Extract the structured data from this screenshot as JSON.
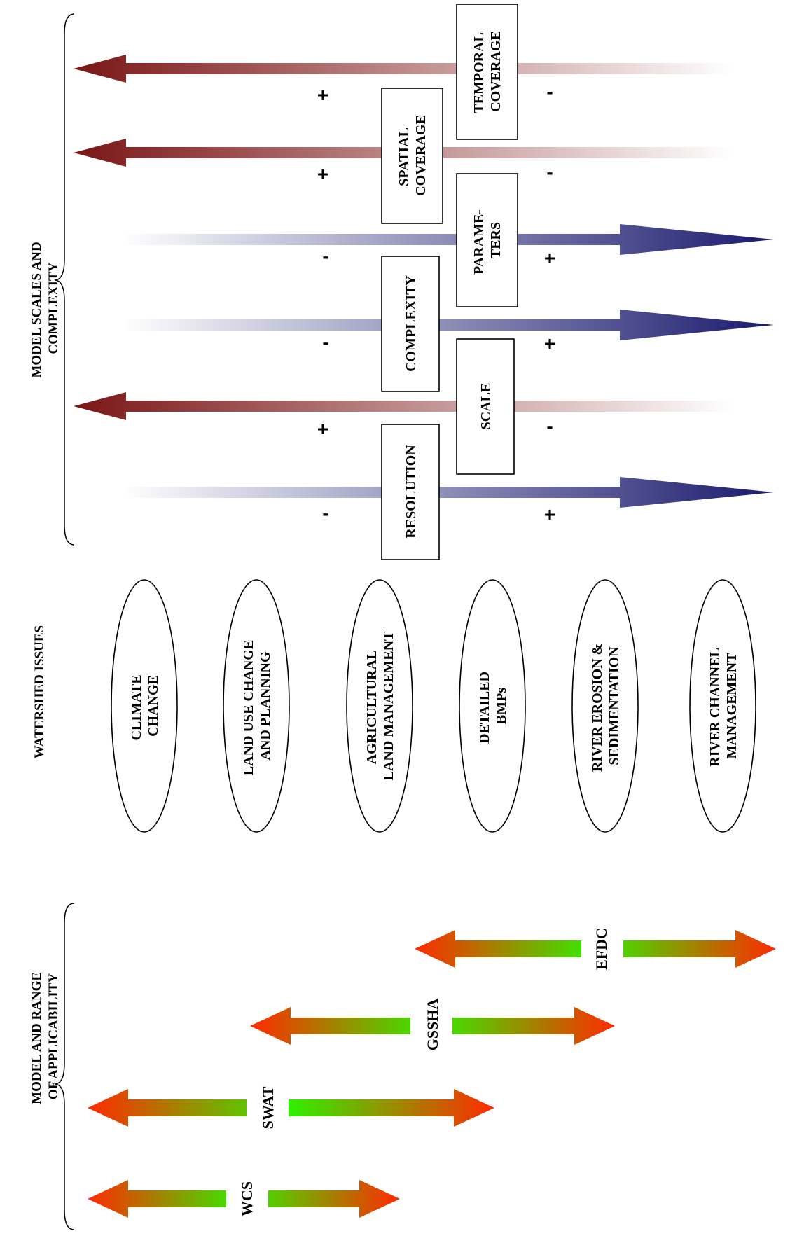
{
  "headings": {
    "model_scales": [
      "MODEL SCALES AND",
      "COMPLEXITY"
    ],
    "watershed_issues": "WATERSHED ISSUES",
    "model_range": [
      "MODEL AND RANGE",
      "OF APPLICABILITY"
    ]
  },
  "scale_arrows": [
    {
      "key": "temporal",
      "direction": "increase-up",
      "box": [
        "TEMPORAL",
        "COVERAGE"
      ],
      "plus": "+",
      "minus": "-"
    },
    {
      "key": "spatial",
      "direction": "increase-up",
      "box": [
        "SPATIAL",
        "COVERAGE"
      ],
      "plus": "+",
      "minus": "-"
    },
    {
      "key": "parameters",
      "direction": "increase-down",
      "box": [
        "PARAME-",
        "TERS"
      ],
      "plus": "+",
      "minus": "-"
    },
    {
      "key": "complexity",
      "direction": "increase-down",
      "box": [
        "COMPLEXITY"
      ],
      "plus": "+",
      "minus": "-"
    },
    {
      "key": "scale",
      "direction": "increase-up",
      "box": [
        "SCALE"
      ],
      "plus": "+",
      "minus": "-"
    },
    {
      "key": "resolution",
      "direction": "increase-down",
      "box": [
        "RESOLUTION"
      ],
      "plus": "+",
      "minus": "-"
    }
  ],
  "watershed_issues": [
    {
      "key": "climate",
      "lines": [
        "CLIMATE",
        "CHANGE"
      ]
    },
    {
      "key": "land-use",
      "lines": [
        "LAND USE CHANGE",
        "AND PLANNING"
      ]
    },
    {
      "key": "agricultural",
      "lines": [
        "AGRICULTURAL",
        "LAND MANAGEMENT"
      ]
    },
    {
      "key": "bmps",
      "lines": [
        "DETAILED",
        "BMPs"
      ]
    },
    {
      "key": "erosion",
      "lines": [
        "RIVER EROSION &",
        "SEDIMENTATION"
      ]
    },
    {
      "key": "channel",
      "lines": [
        "RIVER CHANNEL",
        "MANAGEMENT"
      ]
    }
  ],
  "models": [
    {
      "key": "wcs",
      "label": "WCS"
    },
    {
      "key": "swat",
      "label": "SWAT"
    },
    {
      "key": "gssha",
      "label": "GSSHA"
    },
    {
      "key": "efdc",
      "label": "EFDC"
    }
  ],
  "colors": {
    "red_arrow": "#7a1515",
    "blue_arrow": "#1a1a6e",
    "range_end": "#ff2a00",
    "range_mid": "#33ee00"
  }
}
